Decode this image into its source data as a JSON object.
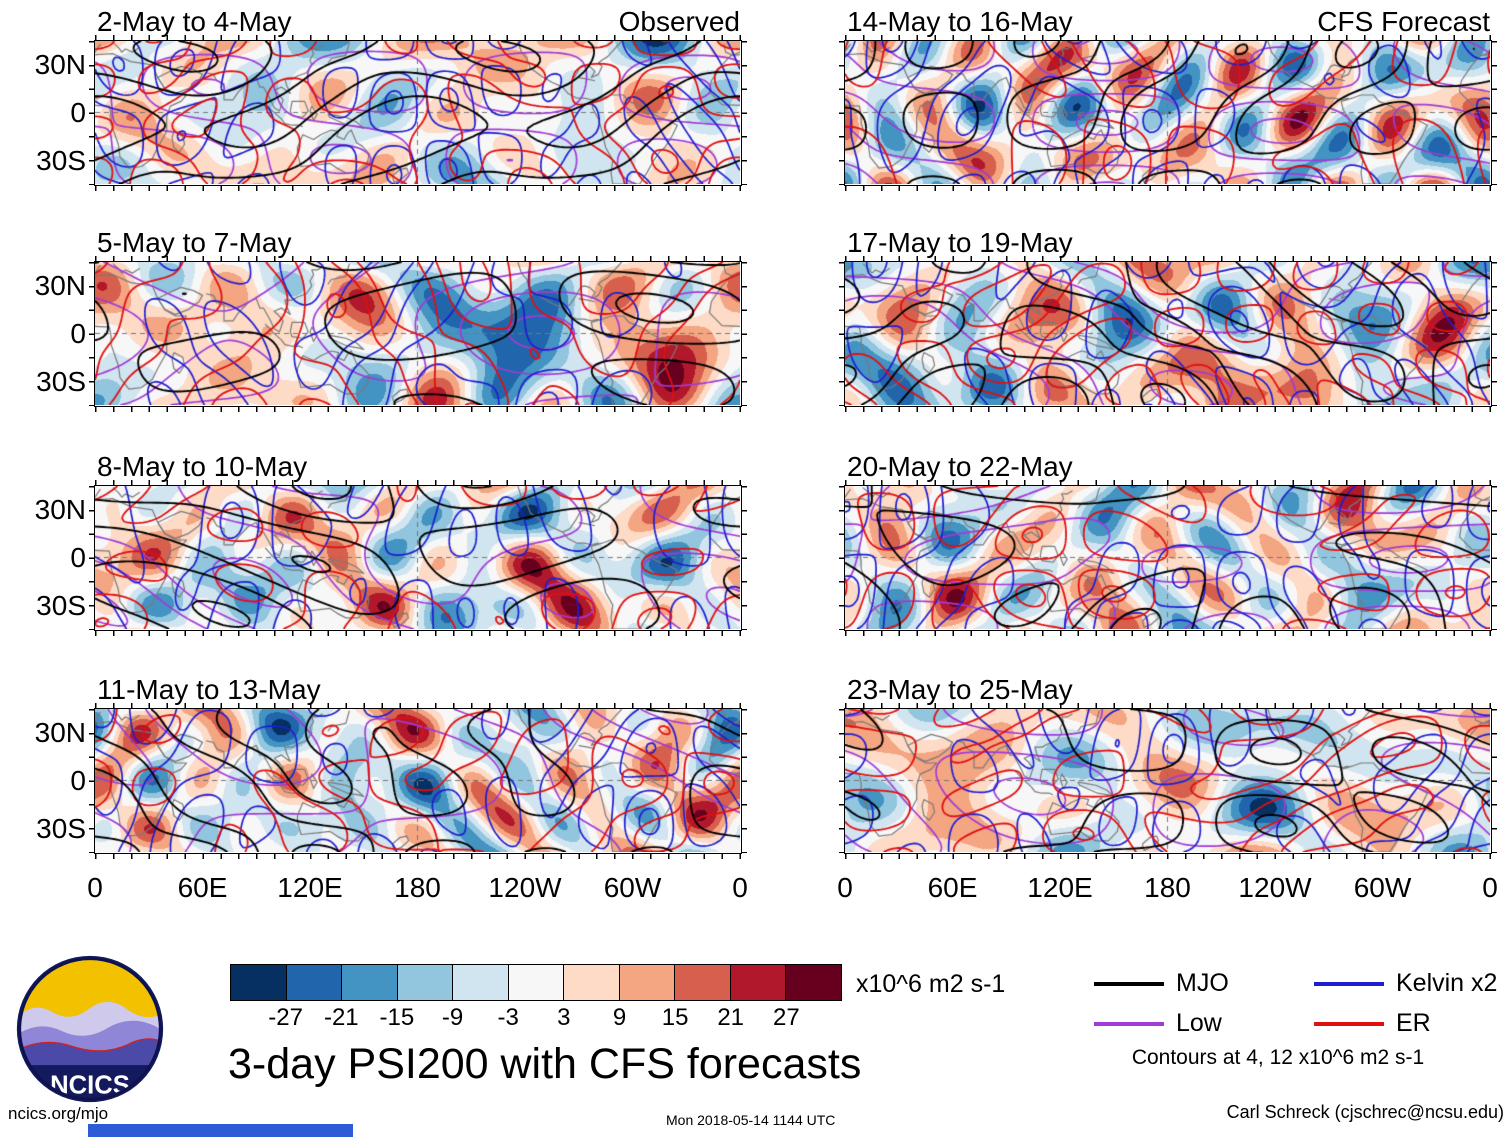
{
  "page": {
    "column_headers": {
      "left": "Observed",
      "right": "CFS Forecast"
    },
    "main_title": "3-day PSI200 with CFS forecasts",
    "footer": {
      "site": "ncics.org/mjo",
      "timestamp": "Mon 2018-05-14 1144 UTC",
      "credit": "Carl Schreck (cjschrec@ncsu.edu)"
    },
    "logo_text": "NCICS"
  },
  "chart_data": {
    "type": "heatmap",
    "title": "3-day PSI200 with CFS forecasts",
    "description": "Eight global map panels of 3-day mean 200-hPa streamfunction (PSI200) anomalies. Left column is observed, right column is CFS forecast. Filled shading is the PSI200 anomaly; overlaid line contours are wave-filtered anomalies (MJO, Low, Kelvin x2, ER) contoured at 4 and 12 x10^6 m2 s-1.",
    "panels": [
      {
        "label": "2-May to 4-May",
        "group": "Observed"
      },
      {
        "label": "5-May to 7-May",
        "group": "Observed"
      },
      {
        "label": "8-May to 10-May",
        "group": "Observed"
      },
      {
        "label": "11-May to 13-May",
        "group": "Observed"
      },
      {
        "label": "14-May to 16-May",
        "group": "CFS Forecast"
      },
      {
        "label": "17-May to 19-May",
        "group": "CFS Forecast"
      },
      {
        "label": "20-May to 22-May",
        "group": "CFS Forecast"
      },
      {
        "label": "23-May to 25-May",
        "group": "CFS Forecast"
      }
    ],
    "x_axis": {
      "ticks": [
        "0",
        "60E",
        "120E",
        "180",
        "120W",
        "60W",
        "0"
      ],
      "range": "0 to 360 degrees longitude"
    },
    "y_axis": {
      "ticks": [
        "30N",
        "0",
        "30S"
      ],
      "range": "45N to 45S"
    },
    "colorbar": {
      "levels": [
        -27,
        -21,
        -15,
        -9,
        -3,
        3,
        9,
        15,
        21,
        27
      ],
      "colors": [
        "#053061",
        "#2166ac",
        "#4393c3",
        "#92c5de",
        "#d1e5f0",
        "#f7f7f7",
        "#fddbc7",
        "#f4a582",
        "#d6604d",
        "#b2182b",
        "#67001f"
      ],
      "unit_label": "x10^6 m2 s-1"
    },
    "legend": {
      "entries": [
        {
          "label": "MJO",
          "color": "#000000"
        },
        {
          "label": "Low",
          "color": "#a23bd6"
        },
        {
          "label": "Kelvin x2",
          "color": "#1e1ecf"
        },
        {
          "label": "ER",
          "color": "#e01010"
        }
      ],
      "note": "Contours at 4, 12 x10^6 m2 s-1"
    }
  }
}
